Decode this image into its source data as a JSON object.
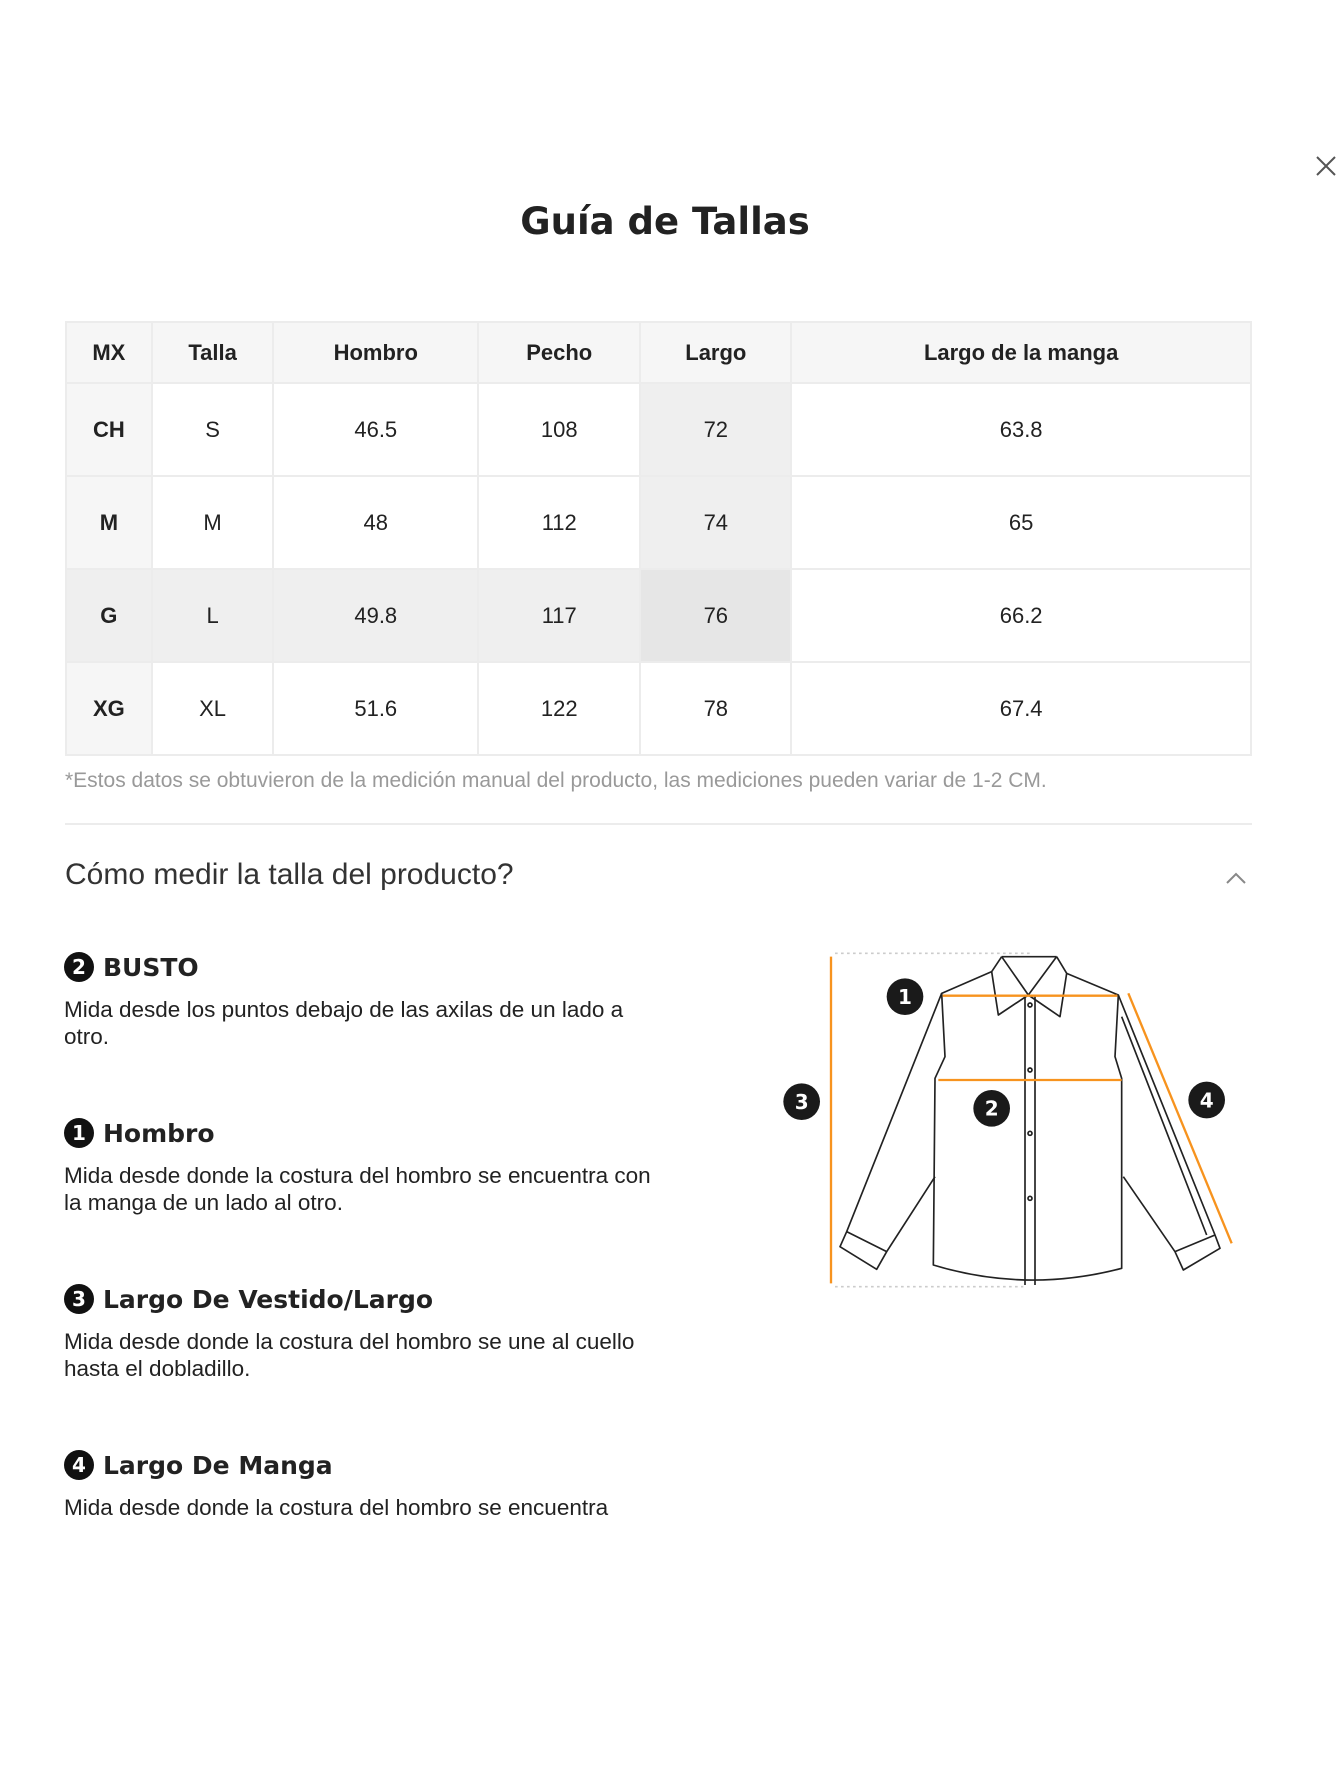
{
  "dialog": {
    "title": "Guía de Tallas",
    "close_icon": "close-icon"
  },
  "size_table": {
    "headers": [
      "MX",
      "Talla",
      "Hombro",
      "Pecho",
      "Largo",
      "Largo de la manga"
    ],
    "rows": [
      [
        "CH",
        "S",
        "46.5",
        "108",
        "72",
        "63.8"
      ],
      [
        "M",
        "M",
        "48",
        "112",
        "74",
        "65"
      ],
      [
        "G",
        "L",
        "49.8",
        "117",
        "76",
        "66.2"
      ],
      [
        "XG",
        "XL",
        "51.6",
        "122",
        "78",
        "67.4"
      ]
    ]
  },
  "note": "*Estos datos se obtuvieron de la medición manual del producto, las mediciones pueden variar de 1-2 CM.",
  "how_to_measure": {
    "title": "Cómo medir la talla del producto?",
    "toggle_icon": "chevron-up-icon",
    "sections": [
      {
        "num": "2",
        "title": "BUSTO",
        "text": "Mida desde los puntos debajo de las axilas de un lado a otro."
      },
      {
        "num": "1",
        "title": "Hombro",
        "text": "Mida desde donde la costura del hombro se encuentra con la manga de un lado al otro."
      },
      {
        "num": "3",
        "title": "Largo De Vestido/Largo",
        "text": "Mida desde donde la costura del hombro se une al cuello hasta el dobladillo."
      },
      {
        "num": "4",
        "title": "Largo De Manga",
        "text": "Mida desde donde la costura del hombro se encuentra"
      }
    ],
    "diagram_labels": [
      "1",
      "2",
      "3",
      "4"
    ],
    "accent_color": "#f7931e"
  }
}
